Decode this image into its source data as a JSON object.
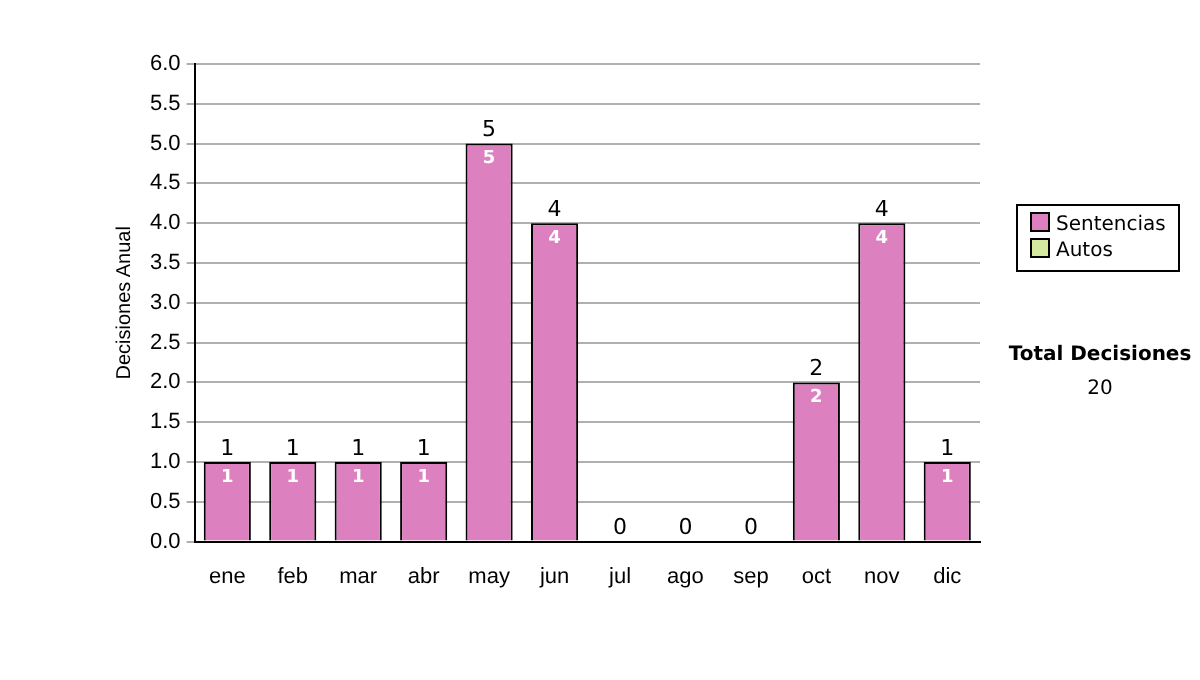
{
  "chart_data": {
    "type": "bar",
    "stacked": true,
    "ylabel": "Decisiones Anual",
    "categories": [
      "ene",
      "feb",
      "mar",
      "abr",
      "may",
      "jun",
      "jul",
      "ago",
      "sep",
      "oct",
      "nov",
      "dic"
    ],
    "series": [
      {
        "name": "Sentencias",
        "color": "#dd80c0",
        "values": [
          1,
          1,
          1,
          1,
          5,
          4,
          0,
          0,
          0,
          2,
          4,
          1
        ],
        "value_labels": [
          "1",
          "1",
          "1",
          "1",
          "5",
          "4",
          null,
          null,
          null,
          "2",
          "4",
          "1"
        ]
      },
      {
        "name": "Autos",
        "color": "#d4e8a0",
        "values": [
          0,
          0,
          0,
          0,
          0,
          0,
          0,
          0,
          0,
          0,
          0,
          0
        ]
      }
    ],
    "totals": [
      "1",
      "1",
      "1",
      "1",
      "5",
      "4",
      "0",
      "0",
      "0",
      "2",
      "4",
      "1"
    ],
    "ylim": [
      0,
      6
    ],
    "yticks": [
      {
        "value": 0,
        "label": "0.0"
      },
      {
        "value": 0.5,
        "label": "0.5"
      },
      {
        "value": 1,
        "label": "1.0"
      },
      {
        "value": 1.5,
        "label": "1.5"
      },
      {
        "value": 2,
        "label": "2.0"
      },
      {
        "value": 2.5,
        "label": "2.5"
      },
      {
        "value": 3,
        "label": "3.0"
      },
      {
        "value": 3.5,
        "label": "3.5"
      },
      {
        "value": 4,
        "label": "4.0"
      },
      {
        "value": 4.5,
        "label": "4.5"
      },
      {
        "value": 5,
        "label": "5.0"
      },
      {
        "value": 5.5,
        "label": "5.5"
      },
      {
        "value": 6,
        "label": "6.0"
      }
    ],
    "grid": "y",
    "legend": "right",
    "annotations": [
      "Total Decisiones",
      "20"
    ]
  }
}
